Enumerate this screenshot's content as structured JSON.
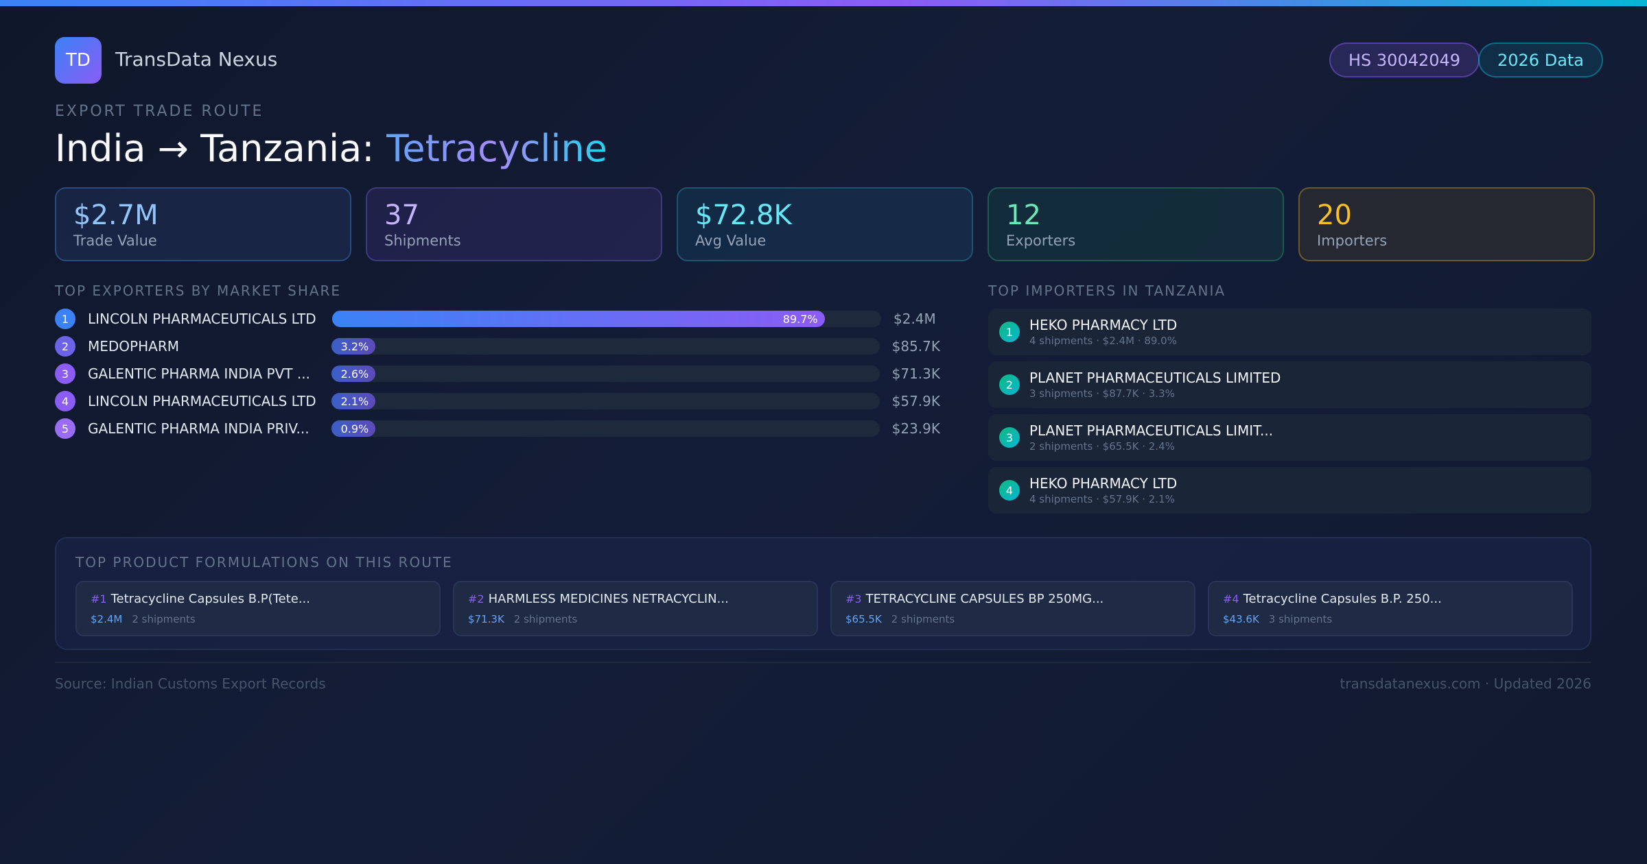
{
  "brand": {
    "logo": "TD",
    "name": "TransData Nexus"
  },
  "badges": {
    "hs": "HS 30042049",
    "year": "2026 Data"
  },
  "header": {
    "eyebrow": "EXPORT TRADE ROUTE",
    "route": "India → Tanzania:",
    "product": "Tetracycline"
  },
  "stats": [
    {
      "value": "$2.7M",
      "label": "Trade Value",
      "color": "#93c5fd"
    },
    {
      "value": "37",
      "label": "Shipments",
      "color": "#c4b5fd"
    },
    {
      "value": "$72.8K",
      "label": "Avg Value",
      "color": "#67e8f9"
    },
    {
      "value": "12",
      "label": "Exporters",
      "color": "#6ee7b7"
    },
    {
      "value": "20",
      "label": "Importers",
      "color": "#fbbf24"
    }
  ],
  "exporters": {
    "title": "TOP EXPORTERS BY MARKET SHARE",
    "items": [
      {
        "rank": "1",
        "name": "LINCOLN PHARMACEUTICALS LTD",
        "share": 89.7,
        "share_label": "89.7%",
        "value": "$2.4M"
      },
      {
        "rank": "2",
        "name": "MEDOPHARM",
        "share": 3.2,
        "share_label": "3.2%",
        "value": "$85.7K"
      },
      {
        "rank": "3",
        "name": "GALENTIC PHARMA INDIA PVT ...",
        "share": 2.6,
        "share_label": "2.6%",
        "value": "$71.3K"
      },
      {
        "rank": "4",
        "name": "LINCOLN PHARMACEUTICALS LTD",
        "share": 2.1,
        "share_label": "2.1%",
        "value": "$57.9K"
      },
      {
        "rank": "5",
        "name": "GALENTIC PHARMA INDIA PRIV...",
        "share": 0.9,
        "share_label": "0.9%",
        "value": "$23.9K"
      }
    ]
  },
  "importers": {
    "title": "TOP IMPORTERS IN TANZANIA",
    "items": [
      {
        "rank": "1",
        "name": "HEKO PHARMACY LTD",
        "meta": "4 shipments · $2.4M · 89.0%"
      },
      {
        "rank": "2",
        "name": "PLANET PHARMACEUTICALS LIMITED",
        "meta": "3 shipments · $87.7K · 3.3%"
      },
      {
        "rank": "3",
        "name": "PLANET PHARMACEUTICALS LIMIT...",
        "meta": "2 shipments · $65.5K · 2.4%"
      },
      {
        "rank": "4",
        "name": "HEKO PHARMACY LTD",
        "meta": "4 shipments · $57.9K · 2.1%"
      }
    ]
  },
  "formulations": {
    "title": "TOP PRODUCT FORMULATIONS ON THIS ROUTE",
    "items": [
      {
        "rank": "#1",
        "name": "Tetracycline Capsules B.P(Tete...",
        "value": "$2.4M",
        "shipments": "2 shipments"
      },
      {
        "rank": "#2",
        "name": "HARMLESS MEDICINES NETRACYCLIN...",
        "value": "$71.3K",
        "shipments": "2 shipments"
      },
      {
        "rank": "#3",
        "name": "TETRACYCLINE CAPSULES BP 250MG...",
        "value": "$65.5K",
        "shipments": "2 shipments"
      },
      {
        "rank": "#4",
        "name": "Tetracycline Capsules B.P. 250...",
        "value": "$43.6K",
        "shipments": "3 shipments"
      }
    ]
  },
  "footer": {
    "source": "Source: Indian Customs Export Records",
    "site": "transdatanexus.com · Updated 2026"
  }
}
